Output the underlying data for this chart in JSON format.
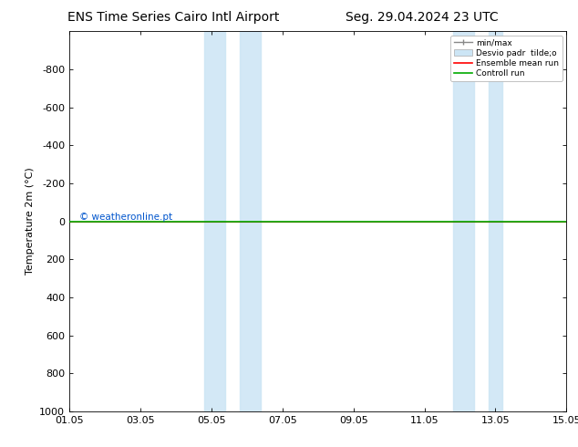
{
  "title_left": "ENS Time Series Cairo Intl Airport",
  "title_right": "Seg. 29.04.2024 23 UTC",
  "ylabel": "Temperature 2m (°C)",
  "ylim_top": -1000,
  "ylim_bottom": 1000,
  "yticks": [
    -800,
    -600,
    -400,
    -200,
    0,
    200,
    400,
    600,
    800,
    1000
  ],
  "xtick_labels": [
    "01.05",
    "03.05",
    "05.05",
    "07.05",
    "09.05",
    "11.05",
    "13.05",
    "15.05"
  ],
  "xtick_positions": [
    0,
    2,
    4,
    6,
    8,
    10,
    12,
    14
  ],
  "xlim": [
    0,
    14
  ],
  "green_line_y": 0,
  "red_line_y": 0,
  "watermark": "© weatheronline.pt",
  "watermark_color": "#0055cc",
  "shaded_bands": [
    [
      3.8,
      4.4
    ],
    [
      4.8,
      5.4
    ],
    [
      10.8,
      11.4
    ],
    [
      11.8,
      12.2
    ]
  ],
  "band_color": "#cce5f5",
  "band_alpha": 0.85,
  "background_color": "#ffffff",
  "plot_bg_color": "#ffffff",
  "title_fontsize": 10,
  "axis_fontsize": 8,
  "tick_fontsize": 8
}
